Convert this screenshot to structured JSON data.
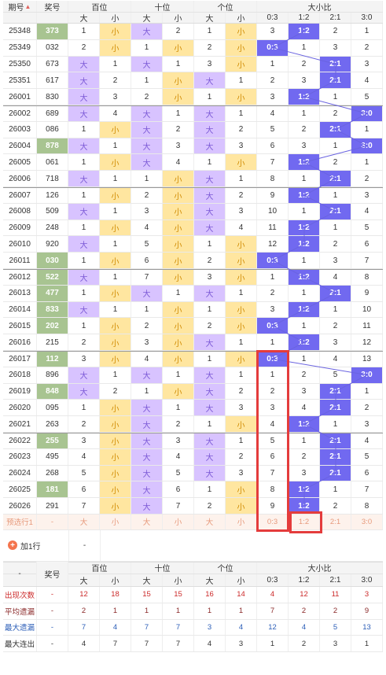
{
  "header": {
    "issue": "期号",
    "sort_arrow": "▲",
    "prize": "奖号",
    "bai": "百位",
    "shi": "十位",
    "ge": "个位",
    "ratio": "大小比",
    "da": "大",
    "xiao": "小",
    "r0": "0:3",
    "r1": "1:2",
    "r2": "2:1",
    "r3": "3:0"
  },
  "rows": [
    {
      "id": "25348",
      "num": "373",
      "hl": true,
      "b": [
        1,
        "小"
      ],
      "s": [
        "大",
        2
      ],
      "g": [
        1,
        "小"
      ],
      "r": [
        "3",
        "1:2",
        "2",
        "1"
      ]
    },
    {
      "id": "25349",
      "num": "032",
      "hl": false,
      "b": [
        2,
        "小"
      ],
      "s": [
        1,
        "小"
      ],
      "g": [
        2,
        "小"
      ],
      "r": [
        "0:3",
        "1",
        "3",
        "2"
      ]
    },
    {
      "id": "25350",
      "num": "673",
      "hl": false,
      "b": [
        "大",
        1
      ],
      "s": [
        "大",
        1
      ],
      "g": [
        3,
        "小"
      ],
      "r": [
        "1",
        "2",
        "2:1",
        "3"
      ]
    },
    {
      "id": "25351",
      "num": "617",
      "hl": false,
      "b": [
        "大",
        2
      ],
      "s": [
        1,
        "小"
      ],
      "g": [
        "大",
        1
      ],
      "r": [
        "2",
        "3",
        "2:1",
        "4"
      ]
    },
    {
      "id": "26001",
      "num": "830",
      "hl": false,
      "b": [
        "大",
        3
      ],
      "s": [
        2,
        "小"
      ],
      "g": [
        1,
        "小"
      ],
      "r": [
        "3",
        "1:2",
        "1",
        "5"
      ]
    },
    {
      "id": "26002",
      "num": "689",
      "hl": false,
      "b": [
        "大",
        4
      ],
      "s": [
        "大",
        1
      ],
      "g": [
        "大",
        1
      ],
      "r": [
        "4",
        "1",
        "2",
        "3:0"
      ]
    },
    {
      "id": "26003",
      "num": "086",
      "hl": false,
      "b": [
        1,
        "小"
      ],
      "s": [
        "大",
        2
      ],
      "g": [
        "大",
        2
      ],
      "r": [
        "5",
        "2",
        "2:1",
        "1"
      ]
    },
    {
      "id": "26004",
      "num": "878",
      "hl": true,
      "b": [
        "大",
        1
      ],
      "s": [
        "大",
        3
      ],
      "g": [
        "大",
        3
      ],
      "r": [
        "6",
        "3",
        "1",
        "3:0"
      ]
    },
    {
      "id": "26005",
      "num": "061",
      "hl": false,
      "b": [
        1,
        "小"
      ],
      "s": [
        "大",
        4
      ],
      "g": [
        1,
        "小"
      ],
      "r": [
        "7",
        "1:2",
        "2",
        "1"
      ]
    },
    {
      "id": "26006",
      "num": "718",
      "hl": false,
      "b": [
        "大",
        1
      ],
      "s": [
        1,
        "小"
      ],
      "g": [
        "大",
        1
      ],
      "r": [
        "8",
        "1",
        "2:1",
        "2"
      ]
    },
    {
      "id": "26007",
      "num": "126",
      "hl": false,
      "b": [
        1,
        "小"
      ],
      "s": [
        2,
        "小"
      ],
      "g": [
        "大",
        2
      ],
      "r": [
        "9",
        "1:2",
        "1",
        "3"
      ]
    },
    {
      "id": "26008",
      "num": "509",
      "hl": false,
      "b": [
        "大",
        1
      ],
      "s": [
        3,
        "小"
      ],
      "g": [
        "大",
        3
      ],
      "r": [
        "10",
        "1",
        "2:1",
        "4"
      ]
    },
    {
      "id": "26009",
      "num": "248",
      "hl": false,
      "b": [
        1,
        "小"
      ],
      "s": [
        4,
        "小"
      ],
      "g": [
        "大",
        4
      ],
      "r": [
        "11",
        "1:2",
        "1",
        "5"
      ]
    },
    {
      "id": "26010",
      "num": "920",
      "hl": false,
      "b": [
        "大",
        1
      ],
      "s": [
        5,
        "小"
      ],
      "g": [
        1,
        "小"
      ],
      "r": [
        "12",
        "1:2",
        "2",
        "6"
      ]
    },
    {
      "id": "26011",
      "num": "030",
      "hl": true,
      "b": [
        1,
        "小"
      ],
      "s": [
        6,
        "小"
      ],
      "g": [
        2,
        "小"
      ],
      "r": [
        "0:3",
        "1",
        "3",
        "7"
      ]
    },
    {
      "id": "26012",
      "num": "522",
      "hl": true,
      "b": [
        "大",
        1
      ],
      "s": [
        7,
        "小"
      ],
      "g": [
        3,
        "小"
      ],
      "r": [
        "1",
        "1:2",
        "4",
        "8"
      ]
    },
    {
      "id": "26013",
      "num": "477",
      "hl": true,
      "b": [
        1,
        "小"
      ],
      "s": [
        "大",
        1
      ],
      "g": [
        "大",
        1
      ],
      "r": [
        "2",
        "1",
        "2:1",
        "9"
      ]
    },
    {
      "id": "26014",
      "num": "833",
      "hl": true,
      "b": [
        "大",
        1
      ],
      "s": [
        1,
        "小"
      ],
      "g": [
        1,
        "小"
      ],
      "r": [
        "3",
        "1:2",
        "1",
        "10"
      ]
    },
    {
      "id": "26015",
      "num": "202",
      "hl": true,
      "b": [
        1,
        "小"
      ],
      "s": [
        2,
        "小"
      ],
      "g": [
        2,
        "小"
      ],
      "r": [
        "0:3",
        "1",
        "2",
        "11"
      ]
    },
    {
      "id": "26016",
      "num": "215",
      "hl": false,
      "b": [
        2,
        "小"
      ],
      "s": [
        3,
        "小"
      ],
      "g": [
        "大",
        1
      ],
      "r": [
        "1",
        "1:2",
        "3",
        "12"
      ]
    },
    {
      "id": "26017",
      "num": "112",
      "hl": true,
      "b": [
        3,
        "小"
      ],
      "s": [
        4,
        "小"
      ],
      "g": [
        1,
        "小"
      ],
      "r": [
        "0:3",
        "1",
        "4",
        "13"
      ]
    },
    {
      "id": "26018",
      "num": "896",
      "hl": false,
      "b": [
        "大",
        1
      ],
      "s": [
        "大",
        1
      ],
      "g": [
        "大",
        1
      ],
      "r": [
        "1",
        "2",
        "5",
        "3:0"
      ]
    },
    {
      "id": "26019",
      "num": "848",
      "hl": true,
      "b": [
        "大",
        2
      ],
      "s": [
        1,
        "小"
      ],
      "g": [
        "大",
        2
      ],
      "r": [
        "2",
        "3",
        "2:1",
        "1"
      ]
    },
    {
      "id": "26020",
      "num": "095",
      "hl": false,
      "b": [
        1,
        "小"
      ],
      "s": [
        "大",
        1
      ],
      "g": [
        "大",
        3
      ],
      "r": [
        "3",
        "4",
        "2:1",
        "2"
      ]
    },
    {
      "id": "26021",
      "num": "263",
      "hl": false,
      "b": [
        2,
        "小"
      ],
      "s": [
        "大",
        2
      ],
      "g": [
        1,
        "小"
      ],
      "r": [
        "4",
        "1:2",
        "1",
        "3"
      ]
    },
    {
      "id": "26022",
      "num": "255",
      "hl": true,
      "b": [
        3,
        "小"
      ],
      "s": [
        "大",
        3
      ],
      "g": [
        "大",
        1
      ],
      "r": [
        "5",
        "1",
        "2:1",
        "4"
      ]
    },
    {
      "id": "26023",
      "num": "495",
      "hl": false,
      "b": [
        4,
        "小"
      ],
      "s": [
        "大",
        4
      ],
      "g": [
        "大",
        2
      ],
      "r": [
        "6",
        "2",
        "2:1",
        "5"
      ]
    },
    {
      "id": "26024",
      "num": "268",
      "hl": false,
      "b": [
        5,
        "小"
      ],
      "s": [
        "大",
        5
      ],
      "g": [
        "大",
        3
      ],
      "r": [
        "7",
        "3",
        "2:1",
        "6"
      ]
    },
    {
      "id": "26025",
      "num": "181",
      "hl": true,
      "b": [
        6,
        "小"
      ],
      "s": [
        "大",
        6
      ],
      "g": [
        1,
        "小"
      ],
      "r": [
        "8",
        "1:2",
        "1",
        "7"
      ]
    },
    {
      "id": "26026",
      "num": "291",
      "hl": false,
      "b": [
        7,
        "小"
      ],
      "s": [
        "大",
        7
      ],
      "g": [
        2,
        "小"
      ],
      "r": [
        "9",
        "1:2",
        "2",
        "8"
      ]
    }
  ],
  "predict": {
    "label": "预选行1",
    "num": "-",
    "cells": [
      "大",
      "小",
      "大",
      "小",
      "大",
      "小",
      "0:3",
      "1:2",
      "2:1",
      "3:0"
    ]
  },
  "add_row": {
    "label": "加1行",
    "value": "-"
  },
  "footer_header": {
    "dash": "-",
    "prize": "奖号"
  },
  "stats": [
    {
      "label": "出现次数",
      "num": "-",
      "vals": [
        "12",
        "18",
        "15",
        "15",
        "16",
        "14",
        "4",
        "12",
        "11",
        "3"
      ],
      "color": "#cc2a2a"
    },
    {
      "label": "平均遗漏",
      "num": "-",
      "vals": [
        "2",
        "1",
        "1",
        "1",
        "1",
        "1",
        "7",
        "2",
        "2",
        "9"
      ],
      "color": "#8b2a2a"
    },
    {
      "label": "最大遗漏",
      "num": "-",
      "vals": [
        "7",
        "4",
        "7",
        "7",
        "3",
        "4",
        "12",
        "4",
        "5",
        "13"
      ],
      "color": "#2d5fb8"
    },
    {
      "label": "最大连出",
      "num": "-",
      "vals": [
        "4",
        "7",
        "7",
        "7",
        "4",
        "3",
        "1",
        "2",
        "3",
        "1"
      ],
      "color": "#333333"
    }
  ]
}
